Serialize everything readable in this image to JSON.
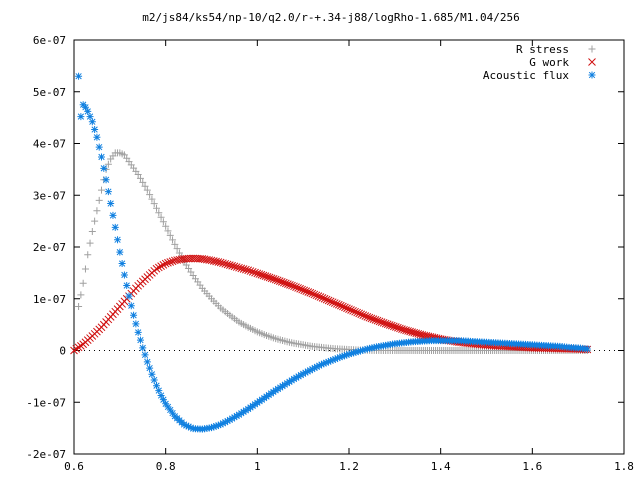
{
  "chart_data": {
    "type": "scatter",
    "title": "m2/js84/ks54/np-10/q2.0/r-+.34-j88/logRho-1.685/M1.04/256",
    "xlabel": "",
    "ylabel": "",
    "xlim": [
      0.6,
      1.8
    ],
    "ylim": [
      -2e-07,
      6e-07
    ],
    "x_ticks": [
      0.6,
      0.8,
      1.0,
      1.2,
      1.4,
      1.6,
      1.8
    ],
    "x_tick_labels": [
      "0.6",
      "0.8",
      "1",
      "1.2",
      "1.4",
      "1.6",
      "1.8"
    ],
    "y_ticks": [
      -2e-07,
      -1e-07,
      0,
      1e-07,
      2e-07,
      3e-07,
      4e-07,
      5e-07,
      6e-07
    ],
    "y_tick_labels": [
      "-2e-07",
      "-1e-07",
      "0",
      "1e-07",
      "2e-07",
      "3e-07",
      "4e-07",
      "5e-07",
      "6e-07"
    ],
    "grid": false,
    "legend_position": "top-right",
    "series": [
      {
        "name": "R stress",
        "marker": "plus",
        "color": "#a0a0a0",
        "x": [
          0.61,
          0.62,
          0.63,
          0.64,
          0.65,
          0.66,
          0.67,
          0.68,
          0.69,
          0.7,
          0.71,
          0.72,
          0.74,
          0.76,
          0.78,
          0.8,
          0.82,
          0.84,
          0.86,
          0.88,
          0.9,
          0.92,
          0.94,
          0.96,
          0.98,
          1.0,
          1.02,
          1.04,
          1.06,
          1.08,
          1.1,
          1.12,
          1.14,
          1.16,
          1.18,
          1.2,
          1.22,
          1.24,
          1.26,
          1.28,
          1.3,
          1.34,
          1.38,
          1.42,
          1.46,
          1.5,
          1.54,
          1.58,
          1.62,
          1.66,
          1.7,
          1.72
        ],
        "y": [
          8.5e-08,
          1.3e-07,
          1.85e-07,
          2.3e-07,
          2.7e-07,
          3.1e-07,
          3.5e-07,
          3.7e-07,
          3.82e-07,
          3.82e-07,
          3.78e-07,
          3.65e-07,
          3.4e-07,
          3.1e-07,
          2.75e-07,
          2.4e-07,
          2.05e-07,
          1.72e-07,
          1.45e-07,
          1.2e-07,
          1e-07,
          8.2e-08,
          6.8e-08,
          5.5e-08,
          4.5e-08,
          3.6e-08,
          2.9e-08,
          2.3e-08,
          1.8e-08,
          1.4e-08,
          1.1e-08,
          8e-09,
          6e-09,
          4e-09,
          3e-09,
          2e-09,
          1e-09,
          5e-10,
          2e-10,
          0,
          0,
          0,
          0,
          0,
          0,
          0,
          0,
          0,
          0,
          0,
          0,
          0
        ]
      },
      {
        "name": "G work",
        "marker": "cross",
        "color": "#d01010",
        "x": [
          0.6,
          0.62,
          0.64,
          0.66,
          0.68,
          0.7,
          0.72,
          0.74,
          0.76,
          0.78,
          0.8,
          0.82,
          0.84,
          0.86,
          0.88,
          0.9,
          0.92,
          0.94,
          0.96,
          0.98,
          1.0,
          1.04,
          1.08,
          1.12,
          1.16,
          1.2,
          1.24,
          1.28,
          1.32,
          1.36,
          1.4,
          1.44,
          1.48,
          1.52,
          1.56,
          1.6,
          1.64,
          1.68,
          1.72
        ],
        "y": [
          0,
          1.2e-08,
          2.8e-08,
          4.5e-08,
          6.5e-08,
          8.5e-08,
          1.05e-07,
          1.25e-07,
          1.42e-07,
          1.58e-07,
          1.68e-07,
          1.74e-07,
          1.77e-07,
          1.78e-07,
          1.77e-07,
          1.74e-07,
          1.7e-07,
          1.65e-07,
          1.6e-07,
          1.55e-07,
          1.49e-07,
          1.37e-07,
          1.24e-07,
          1.1e-07,
          9.5e-08,
          8e-08,
          6.5e-08,
          5.2e-08,
          4e-08,
          3e-08,
          2.2e-08,
          1.6e-08,
          1.2e-08,
          9e-09,
          7e-09,
          5e-09,
          4e-09,
          3e-09,
          2e-09
        ]
      },
      {
        "name": "Acoustic flux",
        "marker": "star",
        "color": "#1080e0",
        "x": [
          0.61,
          0.615,
          0.62,
          0.625,
          0.63,
          0.64,
          0.65,
          0.66,
          0.67,
          0.68,
          0.69,
          0.7,
          0.71,
          0.72,
          0.73,
          0.74,
          0.75,
          0.76,
          0.77,
          0.78,
          0.79,
          0.8,
          0.82,
          0.84,
          0.86,
          0.88,
          0.9,
          0.92,
          0.94,
          0.96,
          0.98,
          1.0,
          1.02,
          1.04,
          1.06,
          1.08,
          1.1,
          1.12,
          1.14,
          1.16,
          1.18,
          1.2,
          1.22,
          1.24,
          1.26,
          1.28,
          1.3,
          1.32,
          1.34,
          1.36,
          1.38,
          1.4,
          1.42,
          1.44,
          1.46,
          1.48,
          1.5,
          1.52,
          1.54,
          1.56,
          1.58,
          1.6,
          1.62,
          1.64,
          1.66,
          1.68,
          1.7,
          1.72
        ],
        "y": [
          5.3e-07,
          4.52e-07,
          4.75e-07,
          4.7e-07,
          4.62e-07,
          4.42e-07,
          4.12e-07,
          3.74e-07,
          3.3e-07,
          2.84e-07,
          2.38e-07,
          1.9e-07,
          1.46e-07,
          1.05e-07,
          6.8e-08,
          3.5e-08,
          5e-09,
          -2.2e-08,
          -4.6e-08,
          -6.8e-08,
          -8.7e-08,
          -1.03e-07,
          -1.27e-07,
          -1.43e-07,
          -1.51e-07,
          -1.52e-07,
          -1.49e-07,
          -1.43e-07,
          -1.34e-07,
          -1.24e-07,
          -1.13e-07,
          -1.01e-07,
          -8.9e-08,
          -7.7e-08,
          -6.6e-08,
          -5.5e-08,
          -4.5e-08,
          -3.6e-08,
          -2.7e-08,
          -2e-08,
          -1.3e-08,
          -7e-09,
          -2e-09,
          3e-09,
          7e-09,
          1e-08,
          1.3e-08,
          1.5e-08,
          1.7e-08,
          1.8e-08,
          1.9e-08,
          1.9e-08,
          1.9e-08,
          1.9e-08,
          1.8e-08,
          1.7e-08,
          1.6e-08,
          1.5e-08,
          1.4e-08,
          1.3e-08,
          1.2e-08,
          1.1e-08,
          1e-08,
          9e-09,
          8e-09,
          6e-09,
          5e-09,
          3e-09
        ]
      }
    ]
  }
}
